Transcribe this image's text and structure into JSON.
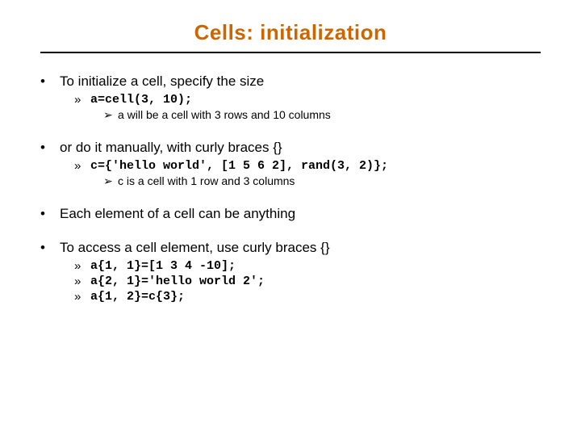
{
  "title": "Cells: initialization",
  "colors": {
    "title": "#cc6600",
    "text": "#000000",
    "rule": "#000000",
    "background": "#ffffff"
  },
  "typography": {
    "title_fontsize": 26,
    "l1_fontsize": 17,
    "l2_fontsize": 15,
    "l3_fontsize": 14,
    "body_font": "Verdana",
    "code_font": "Courier New"
  },
  "bullets": {
    "l1_glyph": "•",
    "l2_glyph": "»",
    "l3_glyph": "➢"
  },
  "items": [
    {
      "text": "To initialize a cell, specify the size",
      "sub": [
        {
          "code": "a=cell(3, 10);",
          "sub": [
            {
              "text": "a will be a cell with 3 rows and 10 columns"
            }
          ]
        }
      ]
    },
    {
      "text": "or do it manually, with curly braces {}",
      "sub": [
        {
          "code": "c={'hello world', [1 5 6 2], rand(3, 2)};",
          "sub": [
            {
              "text": "c is a cell with 1 row and 3 columns"
            }
          ]
        }
      ]
    },
    {
      "text": "Each element of a cell can be anything",
      "sub": []
    },
    {
      "text": "To access a cell element, use curly braces {}",
      "sub": [
        {
          "code": "a{1, 1}=[1 3 4 -10];"
        },
        {
          "code": "a{2, 1}='hello world 2';"
        },
        {
          "code": "a{1, 2}=c{3};"
        }
      ]
    }
  ]
}
